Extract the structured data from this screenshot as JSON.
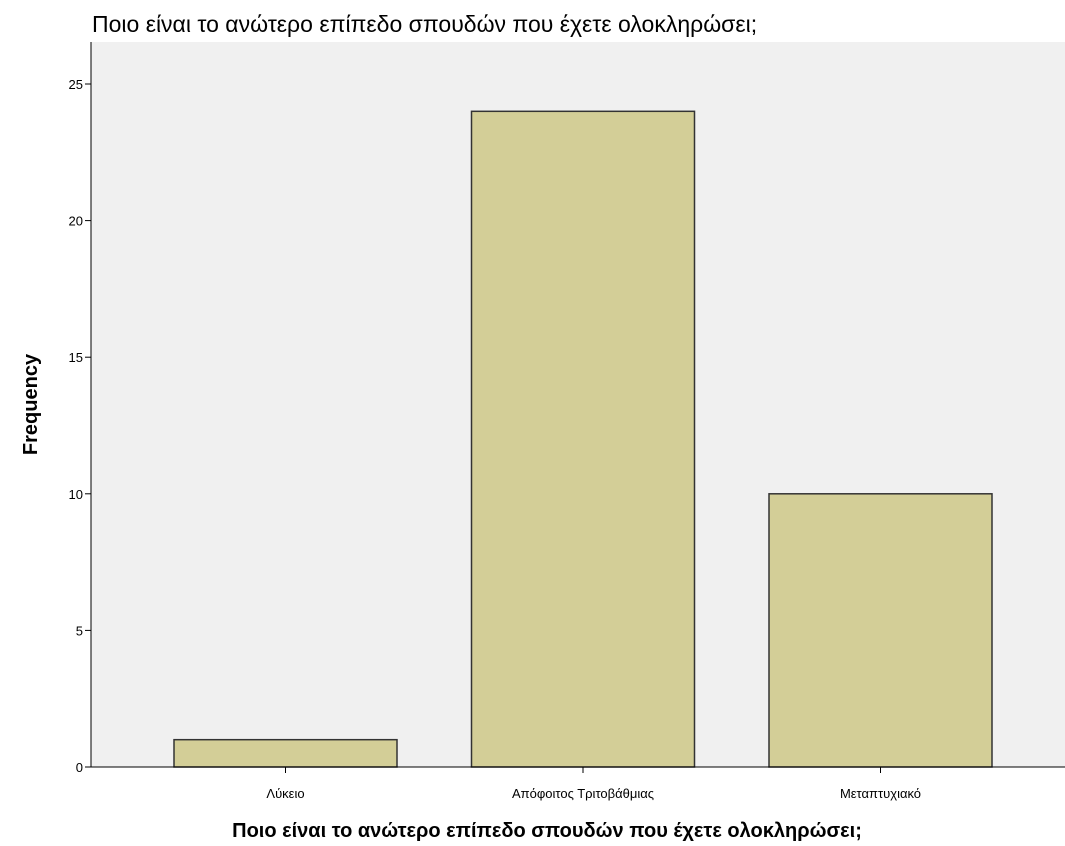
{
  "chart_data": {
    "type": "bar",
    "title": "Ποιο είναι το ανώτερο επίπεδο σπουδών που έχετε ολοκληρώσει;",
    "xlabel": "Ποιο είναι το ανώτερο επίπεδο σπουδών που έχετε ολοκληρώσει;",
    "ylabel": "Frequency",
    "categories": [
      "Λύκειο",
      "Απόφοιτος Τριτοβάθμιας",
      "Μεταπτυχιακό"
    ],
    "values": [
      1,
      24,
      10
    ],
    "ylim": [
      0,
      25
    ],
    "yticks": [
      "0",
      "5",
      "10",
      "15",
      "20",
      "25"
    ],
    "grid": false,
    "legend": "none"
  },
  "colors": {
    "plot_background": "#f0f0f0",
    "bar_fill": "#d3ce97",
    "bar_stroke": "#333333",
    "axis": "#000000"
  }
}
